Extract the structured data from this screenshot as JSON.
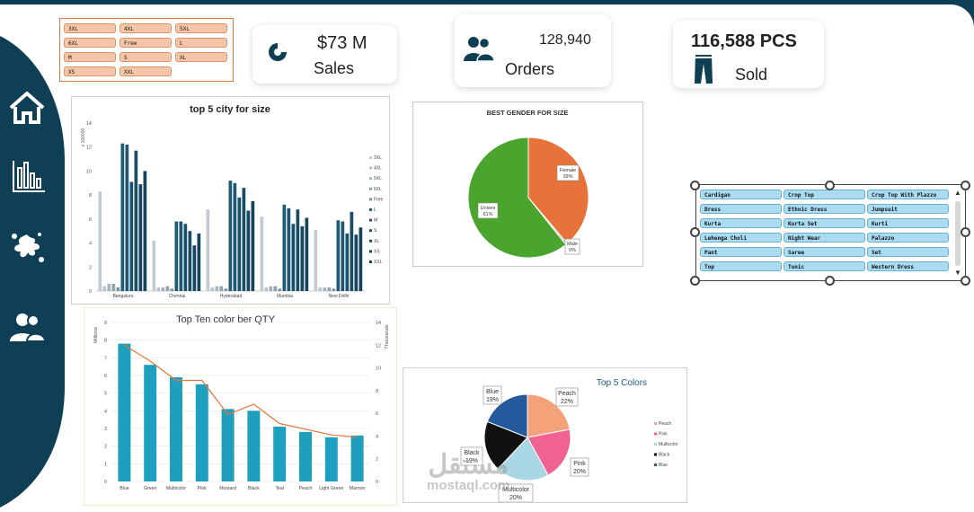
{
  "size_slicer": {
    "items": [
      "3XL",
      "4XL",
      "5XL",
      "6XL",
      "Free",
      "L",
      "M",
      "S",
      "XL",
      "XS",
      "XXL"
    ]
  },
  "kpis": {
    "sales": {
      "value": "$73 M",
      "label": "Sales",
      "icon": "pie-chart-icon"
    },
    "orders": {
      "value": "128,940",
      "label": "Orders",
      "icon": "users-icon"
    },
    "sold": {
      "value": "116,588 PCS",
      "label": "Sold",
      "icon": "trousers-icon"
    }
  },
  "nav": [
    {
      "name": "home",
      "icon": "home-icon"
    },
    {
      "name": "charts",
      "icon": "bar-chart-icon"
    },
    {
      "name": "splash",
      "icon": "splash-icon"
    },
    {
      "name": "users",
      "icon": "users-icon"
    }
  ],
  "product_slicer": {
    "items": [
      "Cardigan",
      "Crop Top",
      "Crop Top With Plazzo",
      "Dress",
      "Ethnic Dress",
      "Jumpsuit",
      "Kurta",
      "Kurta Set",
      "Kurti",
      "Lehenga Choli",
      "Night Wear",
      "Palazzo",
      "Pant",
      "Saree",
      "Set",
      "Top",
      "Tunic",
      "Western Dress"
    ]
  },
  "watermark": {
    "arabic": "مستقل",
    "latin": "mostaql.com"
  },
  "colors": {
    "navy": "#0e3f55",
    "teal": "#1f9fbe",
    "orange": "#e8733a",
    "green": "#4aa52e",
    "peach": "#f4a27a",
    "pink": "#f06292"
  },
  "chart_data": [
    {
      "type": "bar",
      "title": "top 5 city for size",
      "ylabel": "x 100000",
      "ylim": [
        0,
        14
      ],
      "yticks": [
        0,
        2,
        4,
        6,
        8,
        10,
        12,
        14
      ],
      "categories": [
        "Bangaluru",
        "Chennai",
        "Hyderabad",
        "Mumbai",
        "New Delhi"
      ],
      "series": [
        {
          "name": "3XL",
          "color": "#c5ccd1",
          "values": [
            8.3,
            4.2,
            6.8,
            6.2,
            5.1
          ]
        },
        {
          "name": "4XL",
          "color": "#b8c4cc",
          "values": [
            0.4,
            0.3,
            0.3,
            0.3,
            0.3
          ]
        },
        {
          "name": "5XL",
          "color": "#a4b5c0",
          "values": [
            0.6,
            0.3,
            0.4,
            0.4,
            0.3
          ]
        },
        {
          "name": "6XL",
          "color": "#8ea3b1",
          "values": [
            0.6,
            0.4,
            0.4,
            0.4,
            0.3
          ]
        },
        {
          "name": "Free",
          "color": "#7c93a3",
          "values": [
            0.3,
            0.2,
            0.2,
            0.2,
            0.2
          ]
        },
        {
          "name": "L",
          "color": "#1f5b74",
          "values": [
            12.3,
            5.8,
            9.2,
            7.2,
            5.9
          ]
        },
        {
          "name": "M",
          "color": "#1c5670",
          "values": [
            12.2,
            5.8,
            9.0,
            6.9,
            5.8
          ]
        },
        {
          "name": "S",
          "color": "#1a516a",
          "values": [
            9.1,
            5.6,
            7.8,
            5.6,
            4.8
          ]
        },
        {
          "name": "XL",
          "color": "#184c64",
          "values": [
            11.7,
            5.0,
            8.6,
            6.8,
            6.6
          ]
        },
        {
          "name": "XS",
          "color": "#16475e",
          "values": [
            8.9,
            3.8,
            6.7,
            5.4,
            4.7
          ]
        },
        {
          "name": "XXL",
          "color": "#144258",
          "values": [
            10.0,
            4.8,
            7.5,
            6.1,
            5.3
          ]
        }
      ]
    },
    {
      "type": "pie",
      "title": "BEST GENDER FOR SIZE",
      "slices": [
        {
          "label": "Female",
          "value": 39,
          "text": "39%",
          "color": "#e8733a"
        },
        {
          "label": "Male",
          "value": 0.5,
          "text": "0%",
          "color": "#b0b0b0"
        },
        {
          "label": "Unisex",
          "value": 61,
          "text": "61%",
          "color": "#4aa52e"
        }
      ]
    },
    {
      "type": "bar",
      "title": "Top Ten color ber QTY",
      "ylabel": "Millions",
      "y2label": "Thousands",
      "ylim": [
        0,
        9
      ],
      "yticks": [
        0,
        1,
        2,
        3,
        4,
        5,
        6,
        7,
        8,
        9
      ],
      "y2lim": [
        0,
        14
      ],
      "y2ticks": [
        0,
        2,
        4,
        6,
        8,
        10,
        12,
        14
      ],
      "categories": [
        "Blue",
        "Green",
        "Multicolor",
        "Pink",
        "Mustard",
        "Black",
        "Teal",
        "Peach",
        "Light Green",
        "Maroon"
      ],
      "values": [
        7.8,
        6.6,
        5.9,
        5.5,
        4.1,
        4.0,
        3.1,
        2.8,
        2.5,
        2.6
      ],
      "line_values": [
        12.0,
        10.6,
        8.9,
        8.9,
        5.9,
        6.8,
        5.1,
        4.6,
        4.1,
        3.9
      ],
      "bar_color": "#1f9fbe",
      "line_color": "#e8733a"
    },
    {
      "type": "pie",
      "title": "Top 5 Colors",
      "slices": [
        {
          "label": "Peach",
          "value": 22,
          "text": "22%",
          "color": "#f4a27a"
        },
        {
          "label": "Pink",
          "value": 20,
          "text": "20%",
          "color": "#f06292"
        },
        {
          "label": "Multicolor",
          "value": 20,
          "text": "20%",
          "color": "#a9d6e4"
        },
        {
          "label": "Black",
          "value": 19,
          "text": "19%",
          "color": "#111111"
        },
        {
          "label": "Blue",
          "value": 19,
          "text": "19%",
          "color": "#245a9c"
        }
      ],
      "legend": [
        "Peach",
        "Pink",
        "Multicolor",
        "Black",
        "Blue"
      ]
    }
  ]
}
